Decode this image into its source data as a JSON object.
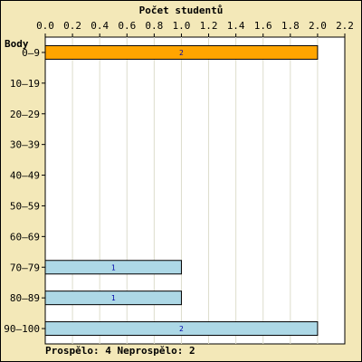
{
  "chart_data": {
    "type": "bar",
    "orientation": "horizontal",
    "title": "Počet studentů",
    "ylabel": "Body",
    "categories": [
      "0–9",
      "10–19",
      "20–29",
      "30–39",
      "40–49",
      "50–59",
      "60–69",
      "70–79",
      "80–89",
      "90–100"
    ],
    "values": [
      2,
      0,
      0,
      0,
      0,
      0,
      0,
      1,
      1,
      2
    ],
    "bar_colors": [
      "#ffa500",
      "#add8e6",
      "#add8e6",
      "#add8e6",
      "#add8e6",
      "#add8e6",
      "#add8e6",
      "#add8e6",
      "#add8e6",
      "#add8e6"
    ],
    "data_labels": [
      "2",
      "",
      "",
      "",
      "",
      "",
      "",
      "1",
      "1",
      "2"
    ],
    "xlim": [
      0,
      2.2
    ],
    "xticks": [
      "0.0",
      "0.2",
      "0.4",
      "0.6",
      "0.8",
      "1.0",
      "1.2",
      "1.4",
      "1.6",
      "1.8",
      "2.0",
      "2.2"
    ],
    "grid": true,
    "axis_position": "top"
  },
  "summary": "Prospělo: 4  Neprospělo: 2",
  "colors": {
    "background": "#f3e8b8",
    "plot_background": "#ffffff",
    "grid": "#ddddcc"
  }
}
